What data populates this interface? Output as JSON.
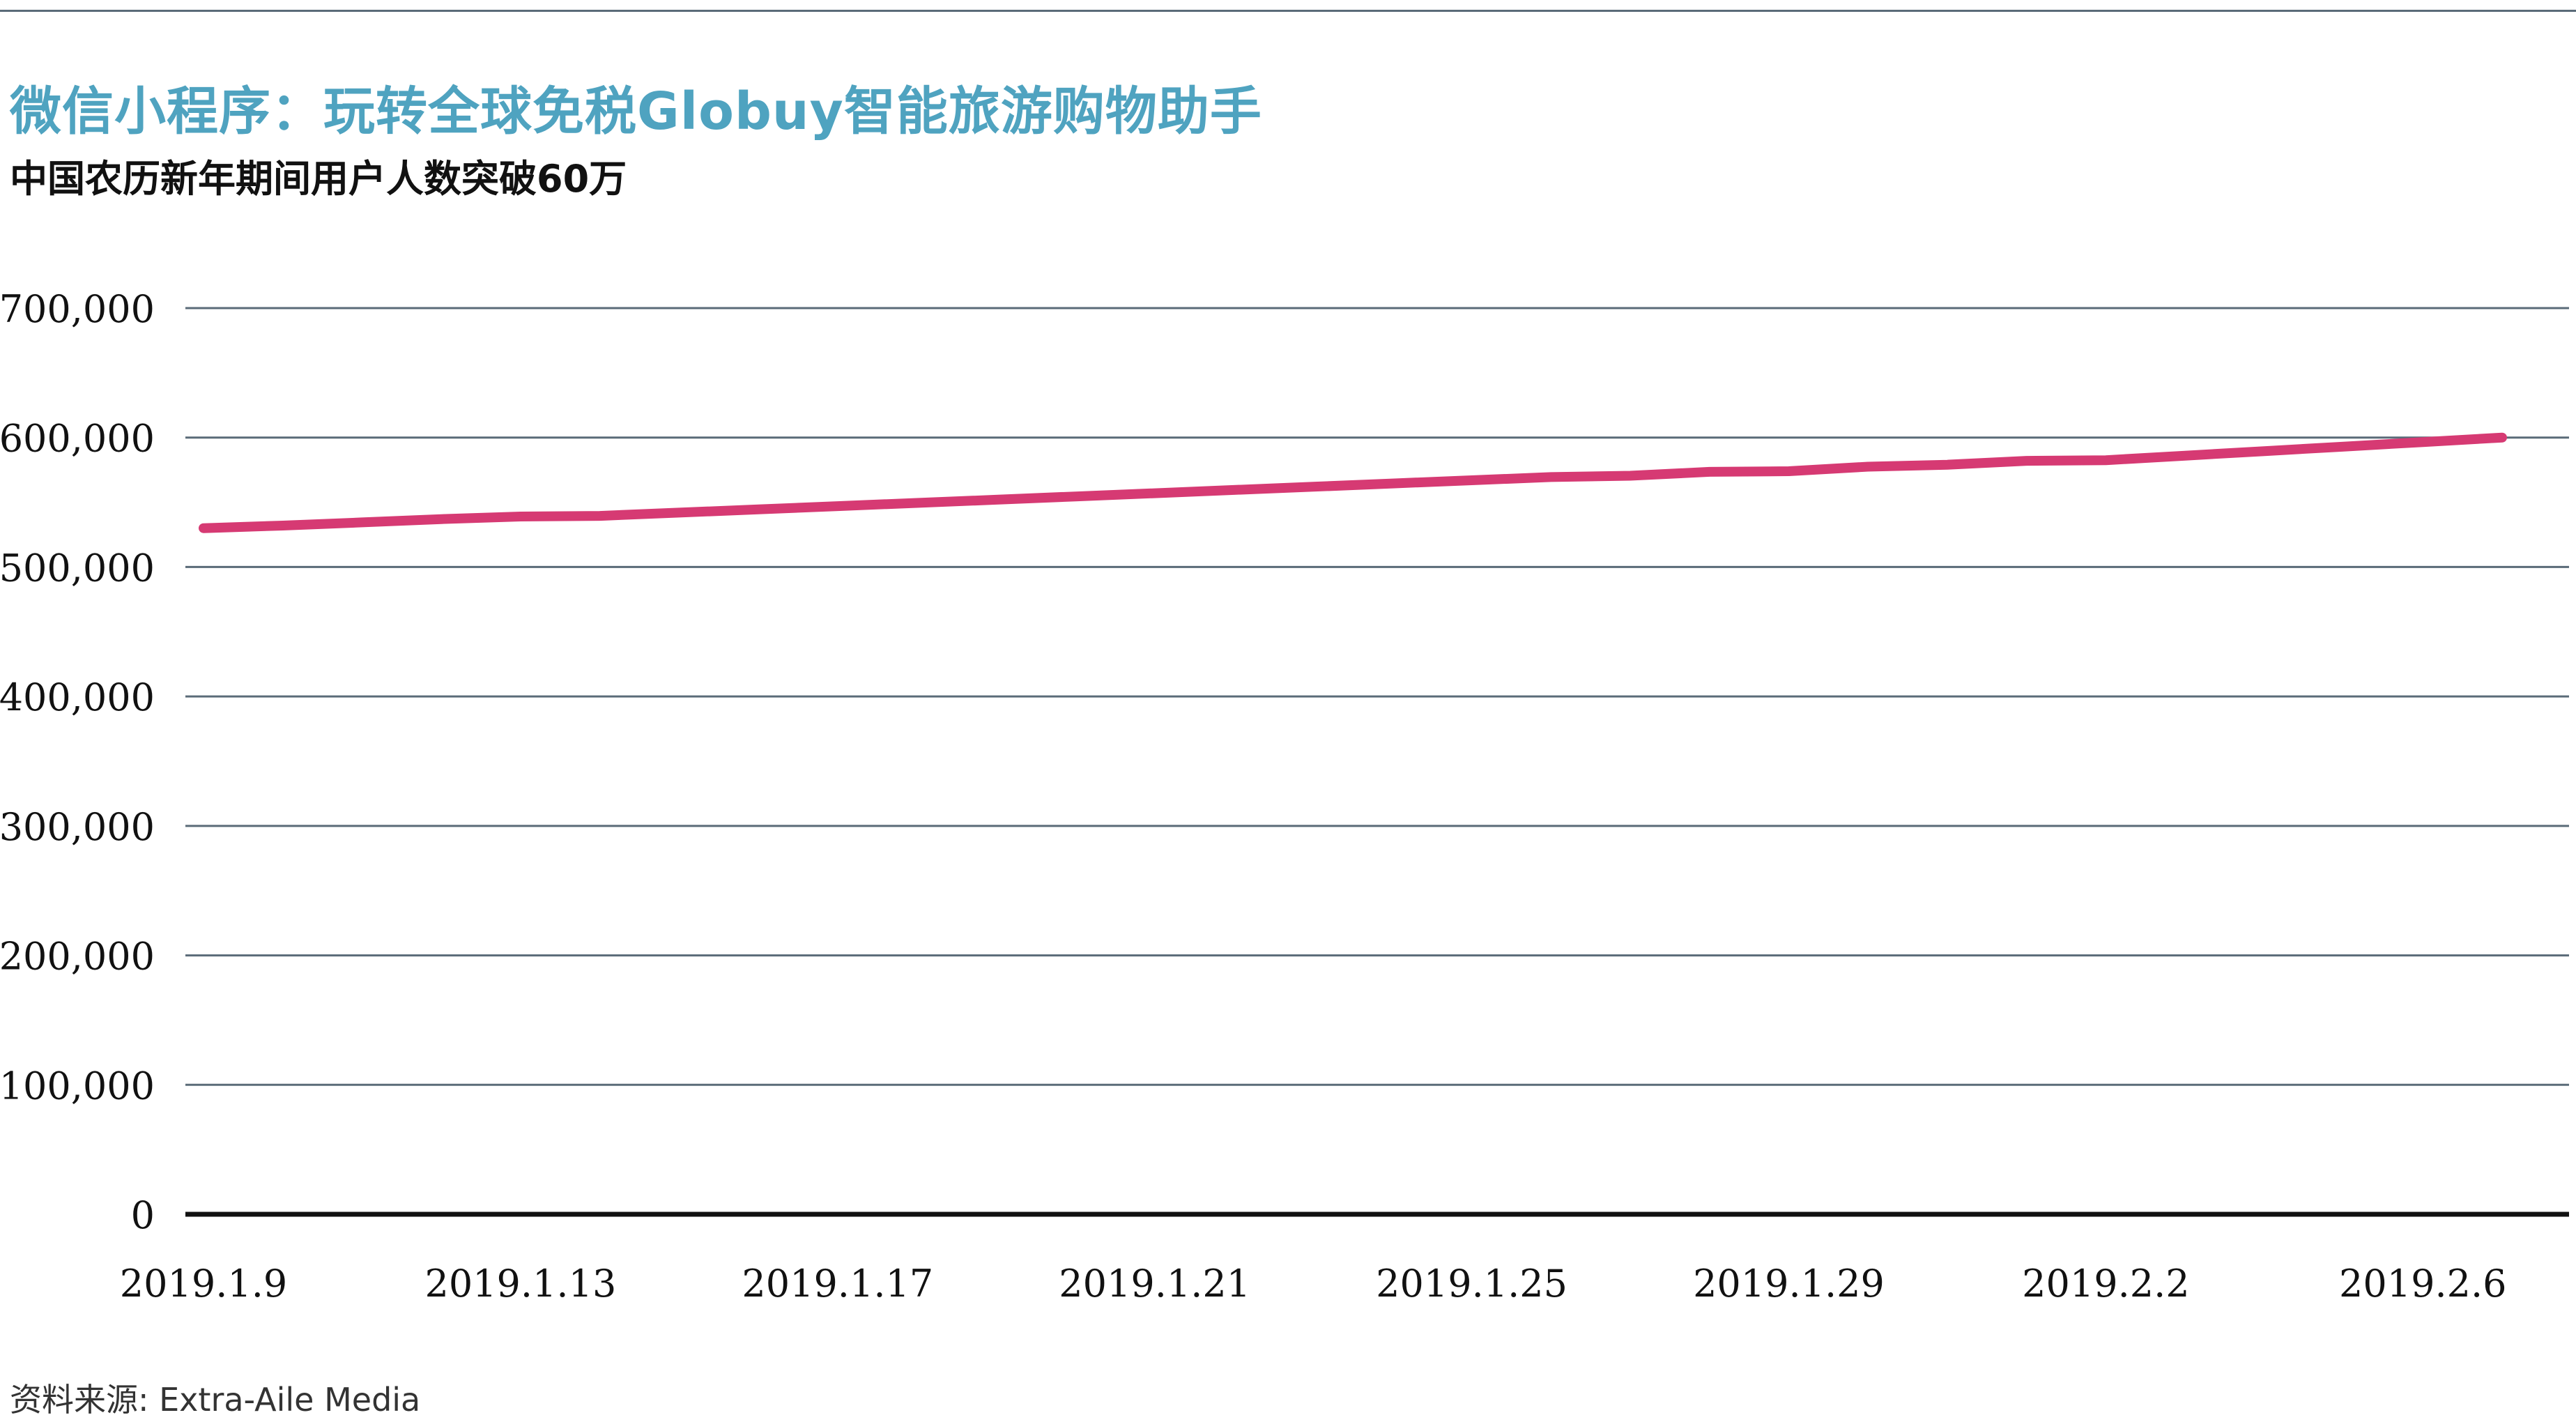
{
  "header": {
    "title": "微信小程序：玩转全球免税Globuy智能旅游购物助手",
    "subtitle": "中国农历新年期间用户人数突破60万"
  },
  "footer": {
    "source": "资料来源: Extra-Aile Media"
  },
  "colors": {
    "title": "#4fa3c0",
    "line": "#d63a73",
    "grid": "#5a6b78",
    "axis": "#111111"
  },
  "chart_data": {
    "type": "line",
    "title": "微信小程序：玩转全球免税Globuy智能旅游购物助手",
    "subtitle": "中国农历新年期间用户人数突破60万",
    "xlabel": "",
    "ylabel": "",
    "ylim": [
      0,
      700000
    ],
    "yticks": [
      0,
      100000,
      200000,
      300000,
      400000,
      500000,
      600000,
      700000
    ],
    "ytick_labels": [
      "0",
      "100,000",
      "200,000",
      "300,000",
      "400,000",
      "500,000",
      "600,000",
      "700,000"
    ],
    "xtick_labels": [
      "2019.1.9",
      "2019.1.13",
      "2019.1.17",
      "2019.1.21",
      "2019.1.25",
      "2019.1.29",
      "2019.2.2",
      "2019.2.6"
    ],
    "grid": true,
    "legend": "none",
    "x": [
      "2019.1.9",
      "2019.1.10",
      "2019.1.11",
      "2019.1.12",
      "2019.1.13",
      "2019.1.14",
      "2019.1.15",
      "2019.1.16",
      "2019.1.17",
      "2019.1.18",
      "2019.1.19",
      "2019.1.20",
      "2019.1.21",
      "2019.1.22",
      "2019.1.23",
      "2019.1.24",
      "2019.1.25",
      "2019.1.26",
      "2019.1.27",
      "2019.1.28",
      "2019.1.29",
      "2019.1.30",
      "2019.1.31",
      "2019.2.1",
      "2019.2.2",
      "2019.2.3",
      "2019.2.4",
      "2019.2.5",
      "2019.2.6",
      "2019.2.7"
    ],
    "series": [
      {
        "values": [
          530000,
          532000,
          534500,
          537000,
          539000,
          539500,
          542000,
          544500,
          547000,
          549500,
          552000,
          554500,
          557000,
          559500,
          562000,
          564500,
          567000,
          569500,
          570500,
          573500,
          574000,
          577500,
          579000,
          582000,
          582500,
          586000,
          589500,
          593000,
          596500,
          600000
        ]
      }
    ]
  }
}
